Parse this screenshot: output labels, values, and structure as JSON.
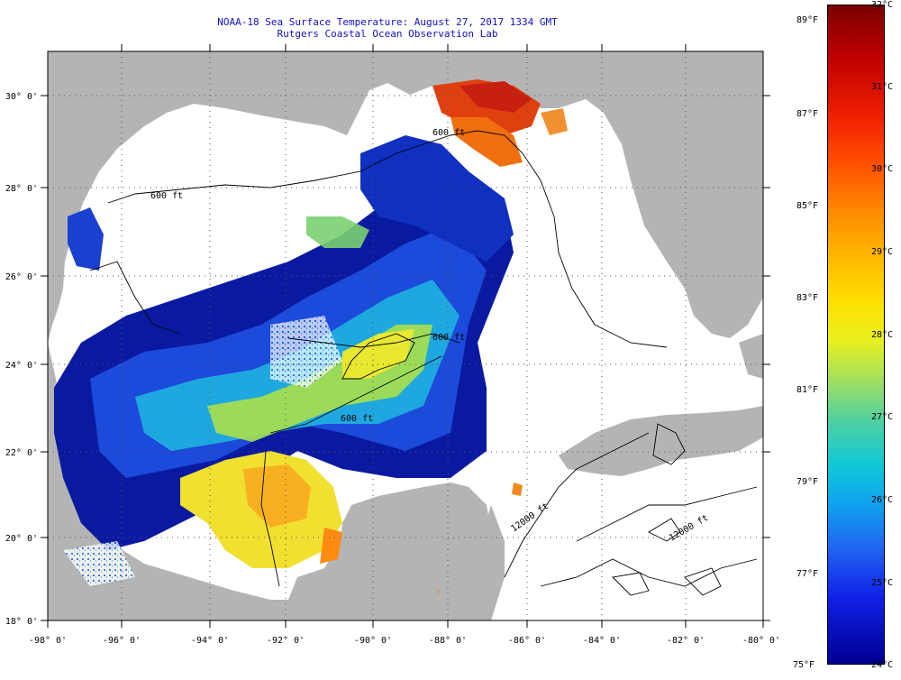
{
  "title": {
    "line1": "NOAA-18 Sea Surface Temperature:  August 27, 2017 1334 GMT",
    "line2": "Rutgers Coastal Ocean Observation Lab"
  },
  "axes": {
    "lat_labels": [
      "18° 0'",
      "20° 0'",
      "22° 0'",
      "24° 0'",
      "26° 0'",
      "28° 0'",
      "30° 0'"
    ],
    "lon_labels": [
      "-98° 0'",
      "-96° 0'",
      "-94° 0'",
      "-92° 0'",
      "-90° 0'",
      "-88° 0'",
      "-86° 0'",
      "-84° 0'",
      "-82° 0'",
      "-80° 0'"
    ]
  },
  "contours": [
    "600 ft",
    "600 ft",
    "600 ft",
    "600 ft",
    "12000 ft",
    "12000 ft"
  ],
  "colorbar": {
    "celsius": [
      "32°C",
      "31°C",
      "30°C",
      "29°C",
      "28°C",
      "27°C",
      "26°C",
      "25°C",
      "24°C"
    ],
    "fahrenheit": [
      "89°F",
      "87°F",
      "85°F",
      "83°F",
      "81°F",
      "79°F",
      "77°F",
      "75°F"
    ]
  },
  "colors": {
    "land": "#b4b4b4",
    "ocean_nodata": "#ffffff",
    "title": "#1010c8"
  }
}
